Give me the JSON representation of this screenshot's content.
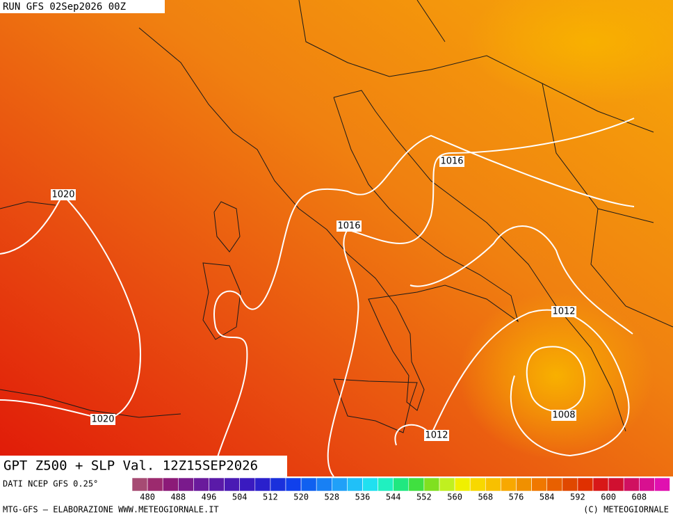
{
  "header": {
    "run": "RUN GFS 02Sep2026 00Z"
  },
  "map": {
    "title": "GPT Z500 + SLP Val. 12Z15SEP2026",
    "isobar_labels": [
      "1020",
      "1020",
      "1016",
      "1016",
      "1012",
      "1012",
      "1008"
    ]
  },
  "legend": {
    "source": "DATI NCEP GFS 0.25°",
    "colors": [
      "#a64b73",
      "#9c2a6e",
      "#8c1a78",
      "#7a1a8c",
      "#6a1a9c",
      "#5a1aa8",
      "#4a1ab4",
      "#3a1ac0",
      "#2a20cc",
      "#1a30dc",
      "#1040ec",
      "#1060f0",
      "#1880f4",
      "#20a0f8",
      "#20c0f8",
      "#20e0f0",
      "#20f0c0",
      "#20e880",
      "#40e040",
      "#80e020",
      "#c0f020",
      "#f0f000",
      "#f8d800",
      "#f8c000",
      "#f8a800",
      "#f09000",
      "#f07800",
      "#e86000",
      "#e04800",
      "#e03000",
      "#d81818",
      "#d01030",
      "#d01060",
      "#d81090",
      "#e010b0"
    ],
    "labels": [
      "480",
      "488",
      "496",
      "504",
      "512",
      "520",
      "528",
      "536",
      "544",
      "552",
      "560",
      "568",
      "576",
      "584",
      "592",
      "600",
      "608"
    ]
  },
  "footer": {
    "left": "MTG-GFS – ELABORAZIONE WWW.METEOGIORNALE.IT",
    "right": "(C) METEOGIORNALE"
  }
}
